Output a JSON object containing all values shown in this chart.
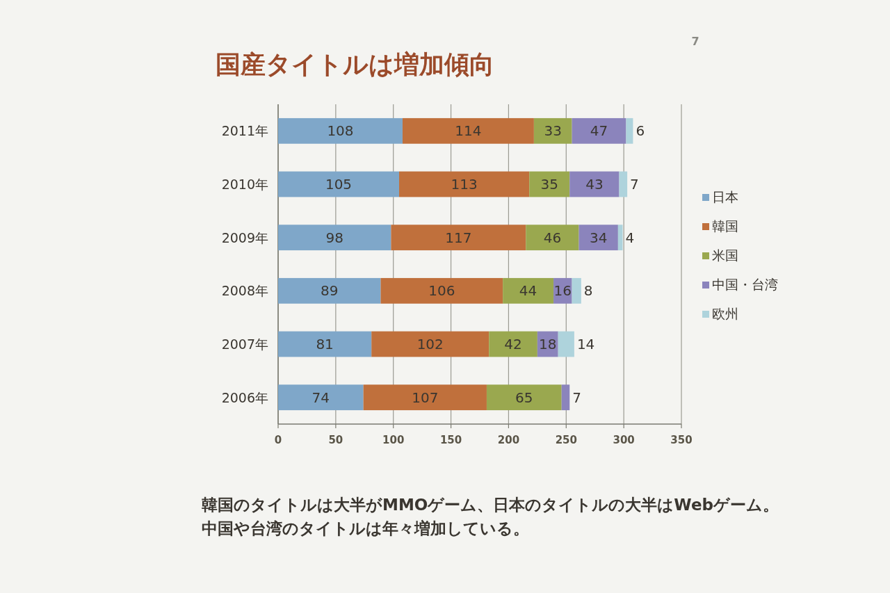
{
  "chart_data": {
    "type": "bar",
    "orientation": "horizontal",
    "stacked": true,
    "title": "国産タイトルは増加傾向",
    "categories": [
      "2011年",
      "2010年",
      "2009年",
      "2008年",
      "2007年",
      "2006年"
    ],
    "series": [
      {
        "name": "日本",
        "color": "#7fa7c9",
        "values": [
          108,
          105,
          98,
          89,
          81,
          74
        ]
      },
      {
        "name": "韓国",
        "color": "#c0703c",
        "values": [
          114,
          113,
          117,
          106,
          102,
          107
        ]
      },
      {
        "name": "米国",
        "color": "#9aa84f",
        "values": [
          33,
          35,
          46,
          44,
          42,
          65
        ]
      },
      {
        "name": "中国・台湾",
        "color": "#8b84bc",
        "values": [
          47,
          43,
          34,
          16,
          18,
          7
        ]
      },
      {
        "name": "欧州",
        "color": "#aed3dc",
        "values": [
          6,
          7,
          4,
          8,
          14,
          null
        ]
      }
    ],
    "xlim": [
      0,
      350
    ],
    "xticks": [
      0,
      50,
      100,
      150,
      200,
      250,
      300,
      350
    ],
    "grid": "x",
    "legend": "right",
    "data_labels": true,
    "annotations": [
      "7",
      "韓国のタイトルは大半がMMOゲーム、日本のタイトルの大半はWebゲーム。",
      "中国や台湾のタイトルは年々増加している。"
    ]
  }
}
